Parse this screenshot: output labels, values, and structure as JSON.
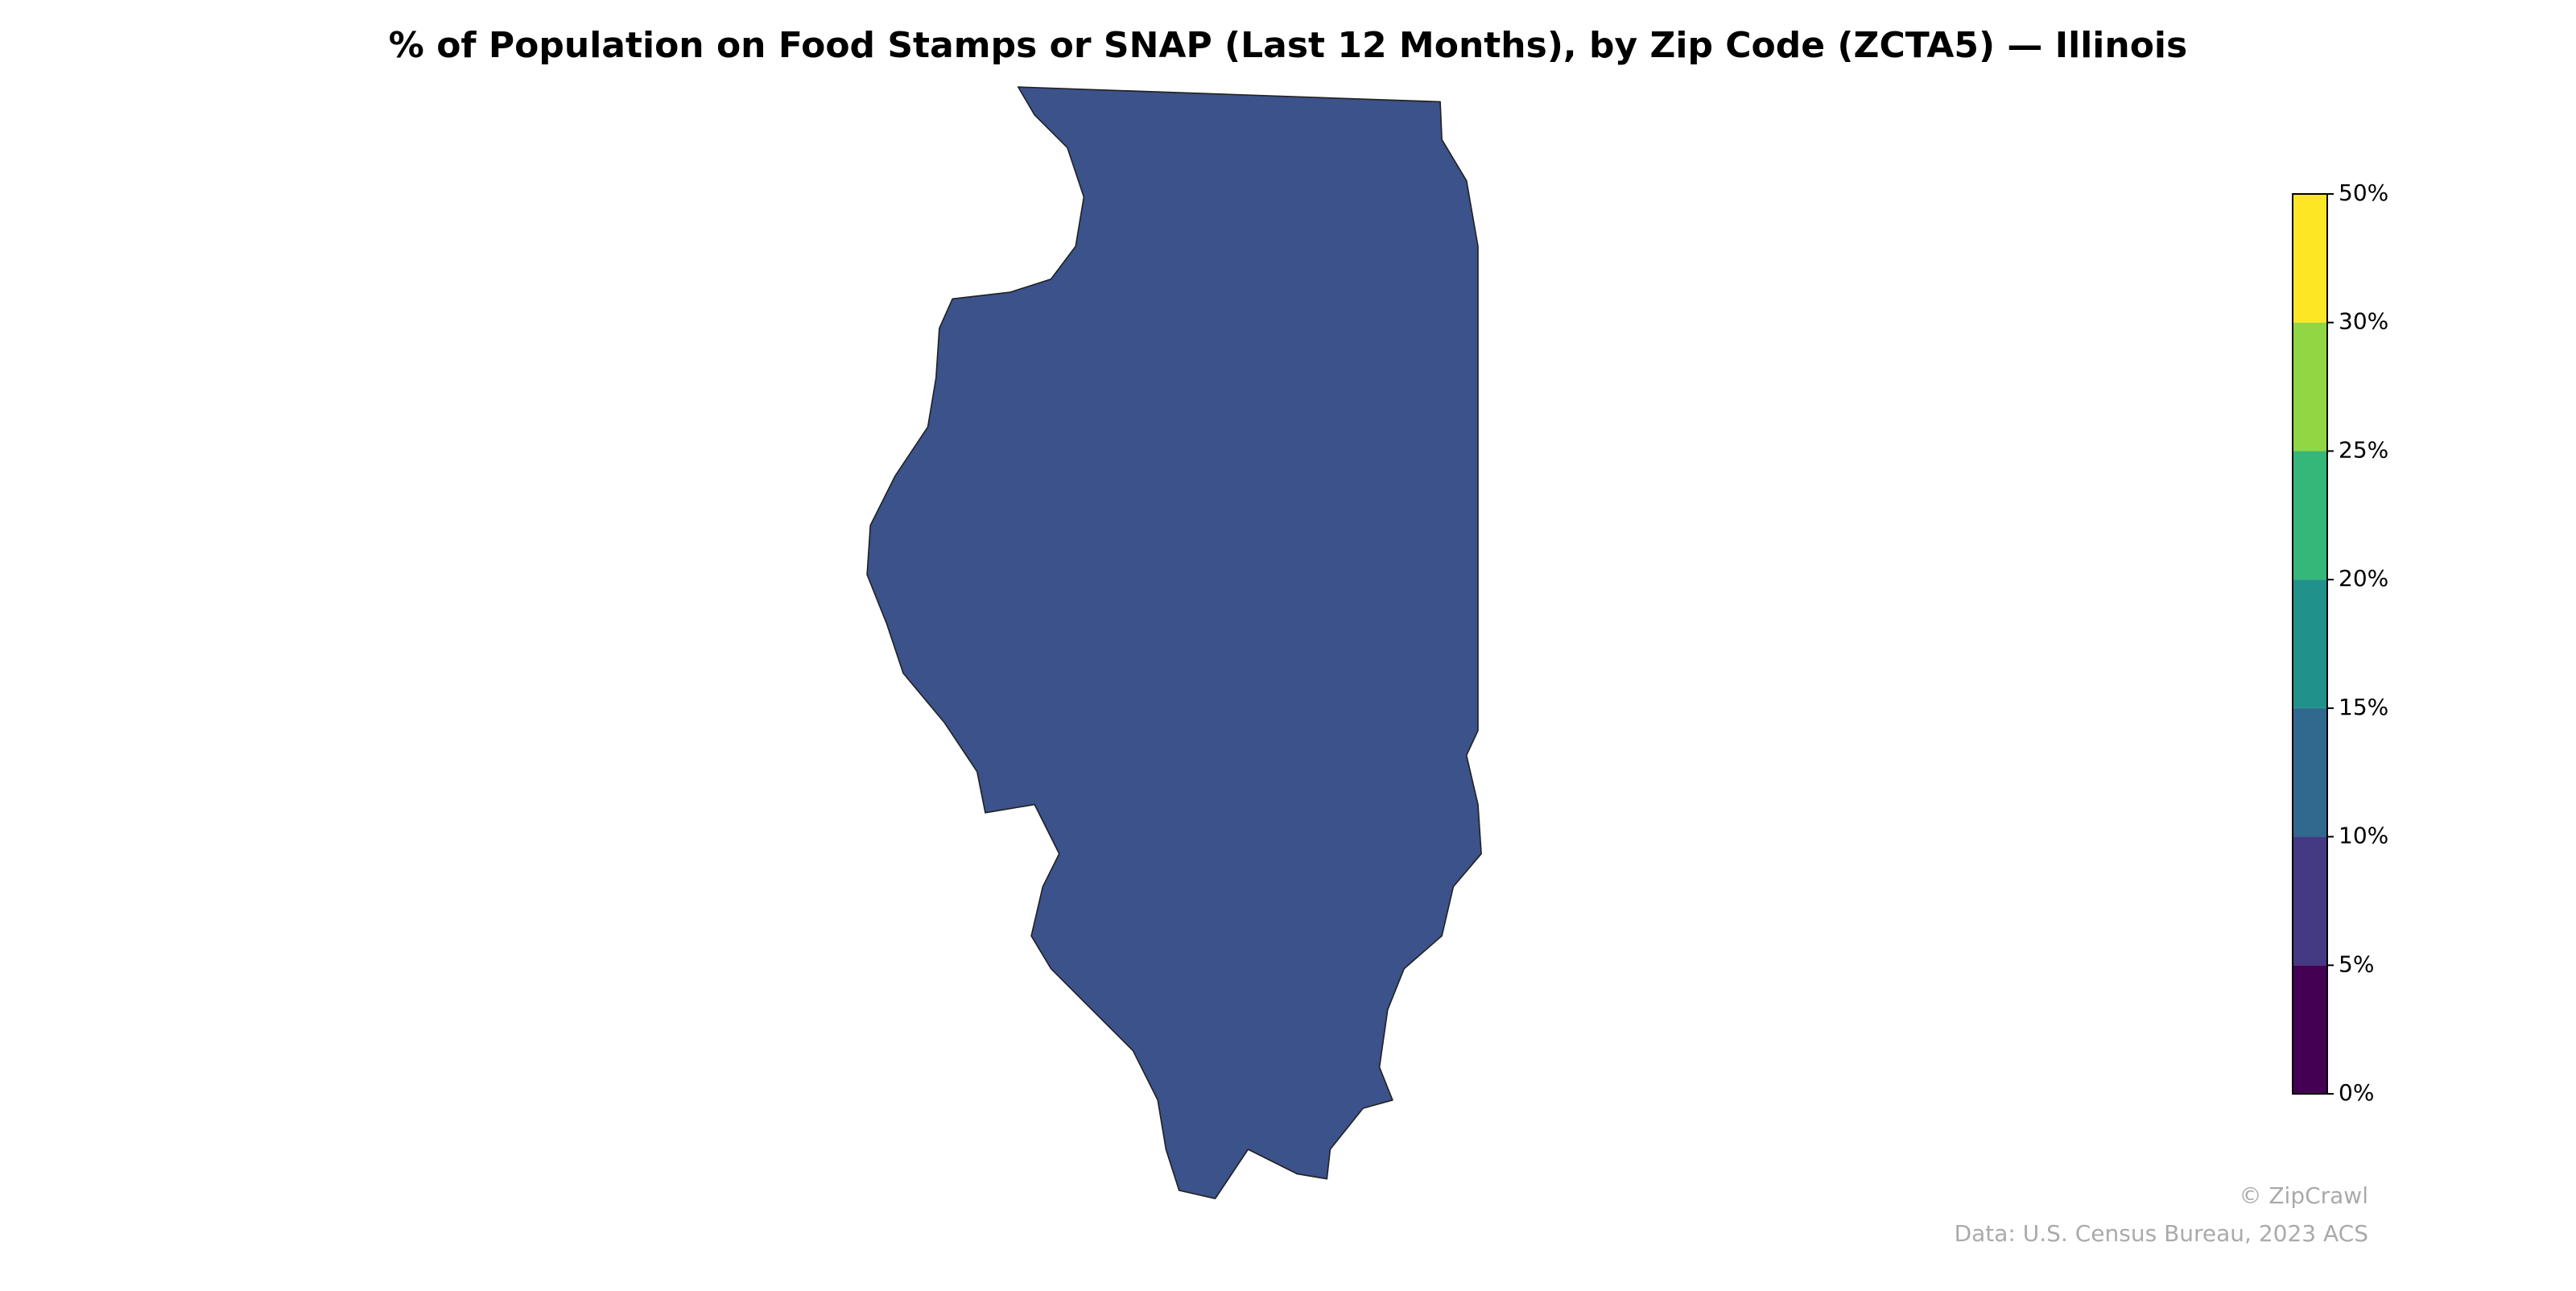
{
  "chart_data": {
    "type": "choropleth",
    "title": "% of Population on Food Stamps or SNAP (Last 12 Months), by Zip Code (ZCTA5) — Illinois",
    "colorbar": {
      "colors": [
        "#440154",
        "#443983",
        "#31688e",
        "#21918c",
        "#35b779",
        "#90d743",
        "#fde725"
      ],
      "ticks": [
        {
          "value": 0,
          "label": "0%"
        },
        {
          "value": 5,
          "label": "5%"
        },
        {
          "value": 10,
          "label": "10%"
        },
        {
          "value": 15,
          "label": "15%"
        },
        {
          "value": 20,
          "label": "20%"
        },
        {
          "value": 25,
          "label": "25%"
        },
        {
          "value": 30,
          "label": "30%"
        },
        {
          "value": 50,
          "label": "50%"
        }
      ]
    },
    "credits": [
      "© ZipCrawl",
      "Data: U.S. Census Bureau, 2023 ACS"
    ]
  }
}
